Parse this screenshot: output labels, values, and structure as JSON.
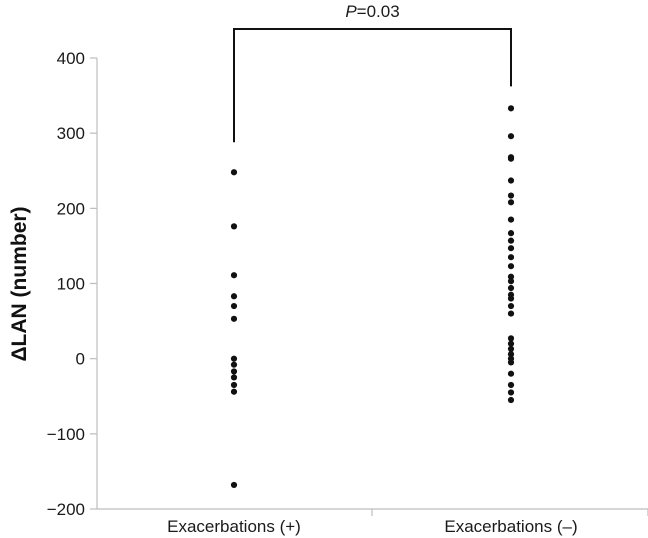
{
  "chart_data": {
    "type": "scatter",
    "title": "",
    "xlabel": "",
    "ylabel": "ΔLAN (number)",
    "ylim": [
      -200,
      400
    ],
    "yticks": [
      -200,
      -100,
      0,
      100,
      200,
      300,
      400
    ],
    "ytick_labels": [
      "−200",
      "−100",
      "0",
      "100",
      "200",
      "300",
      "400"
    ],
    "categories": [
      "Exacerbations (+)",
      "Exacerbations (–)"
    ],
    "grid": false,
    "legend": "none",
    "point_color": "#111111",
    "series": [
      {
        "category": "Exacerbations (+)",
        "values": [
          248,
          176,
          111,
          83,
          70,
          53,
          0,
          -8,
          -17,
          -25,
          -35,
          -44,
          -168
        ]
      },
      {
        "category": "Exacerbations (–)",
        "values": [
          333,
          296,
          268,
          266,
          237,
          217,
          208,
          185,
          167,
          157,
          147,
          135,
          123,
          109,
          103,
          94,
          85,
          80,
          70,
          60,
          27,
          20,
          13,
          6,
          0,
          -5,
          -20,
          -35,
          -45,
          -55
        ]
      }
    ],
    "annotation": {
      "label_italic": "P",
      "label_rest": "=0.03",
      "from": "Exacerbations (+)",
      "to": "Exacerbations (–)"
    }
  }
}
